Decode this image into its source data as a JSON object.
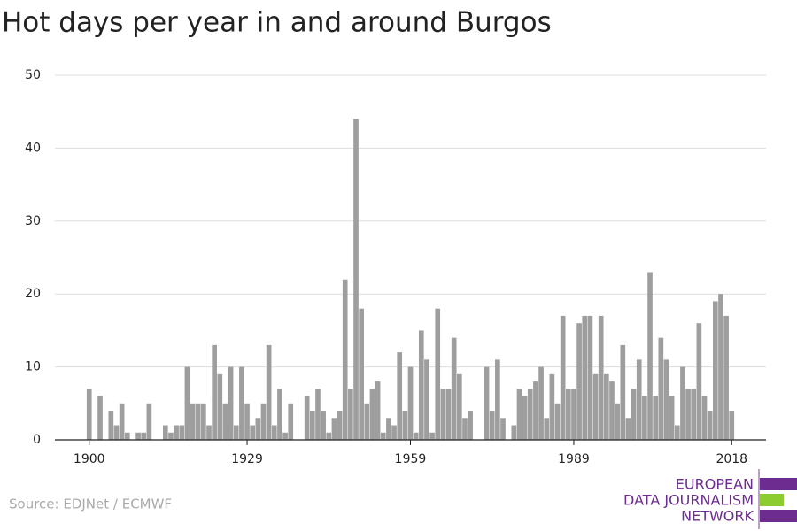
{
  "chart_data": {
    "type": "bar",
    "title": "Hot days per year in and around Burgos",
    "x": [
      1900,
      1901,
      1902,
      1903,
      1904,
      1905,
      1906,
      1907,
      1908,
      1909,
      1910,
      1911,
      1912,
      1913,
      1914,
      1915,
      1916,
      1917,
      1918,
      1919,
      1920,
      1921,
      1922,
      1923,
      1924,
      1925,
      1926,
      1927,
      1928,
      1929,
      1930,
      1931,
      1932,
      1933,
      1934,
      1935,
      1936,
      1937,
      1938,
      1939,
      1940,
      1941,
      1942,
      1943,
      1944,
      1945,
      1946,
      1947,
      1948,
      1949,
      1950,
      1951,
      1952,
      1953,
      1954,
      1955,
      1956,
      1957,
      1958,
      1959,
      1960,
      1961,
      1962,
      1963,
      1964,
      1965,
      1966,
      1967,
      1968,
      1969,
      1970,
      1971,
      1972,
      1973,
      1974,
      1975,
      1976,
      1977,
      1978,
      1979,
      1980,
      1981,
      1982,
      1983,
      1984,
      1985,
      1986,
      1987,
      1988,
      1989,
      1990,
      1991,
      1992,
      1993,
      1994,
      1995,
      1996,
      1997,
      1998,
      1999,
      2000,
      2001,
      2002,
      2003,
      2004,
      2005,
      2006,
      2007,
      2008,
      2009,
      2010,
      2011,
      2012,
      2013,
      2014,
      2015,
      2016,
      2017,
      2018
    ],
    "values": [
      7,
      0,
      6,
      0,
      4,
      2,
      5,
      1,
      0,
      1,
      1,
      5,
      0,
      0,
      2,
      1,
      2,
      2,
      10,
      5,
      5,
      5,
      2,
      13,
      9,
      5,
      10,
      2,
      10,
      5,
      2,
      3,
      5,
      13,
      2,
      7,
      1,
      5,
      0,
      0,
      6,
      4,
      7,
      4,
      1,
      3,
      4,
      22,
      7,
      44,
      18,
      5,
      7,
      8,
      1,
      3,
      2,
      12,
      4,
      10,
      1,
      15,
      11,
      1,
      18,
      7,
      7,
      14,
      9,
      3,
      4,
      0,
      0,
      10,
      4,
      11,
      3,
      0,
      2,
      7,
      6,
      7,
      8,
      10,
      3,
      9,
      5,
      17,
      7,
      7,
      16,
      17,
      17,
      9,
      17,
      9,
      8,
      5,
      13,
      3,
      7,
      11,
      6,
      23,
      6,
      14,
      11,
      6,
      2,
      10,
      7,
      7,
      16,
      6,
      4,
      19,
      20,
      17,
      4
    ],
    "color": "#9e9e9e",
    "xlim": [
      1893.7,
      2024.3
    ],
    "xticks": [
      1900,
      1929,
      1959,
      1989,
      2018
    ],
    "ylim": [
      0,
      50
    ],
    "yticks": [
      0,
      10,
      20,
      30,
      40,
      50
    ],
    "grid": true
  },
  "source": "Source: EDJNet / ECMWF",
  "logo": [
    "EUROPEAN",
    "DATA JOURNALISM",
    "NETWORK"
  ]
}
